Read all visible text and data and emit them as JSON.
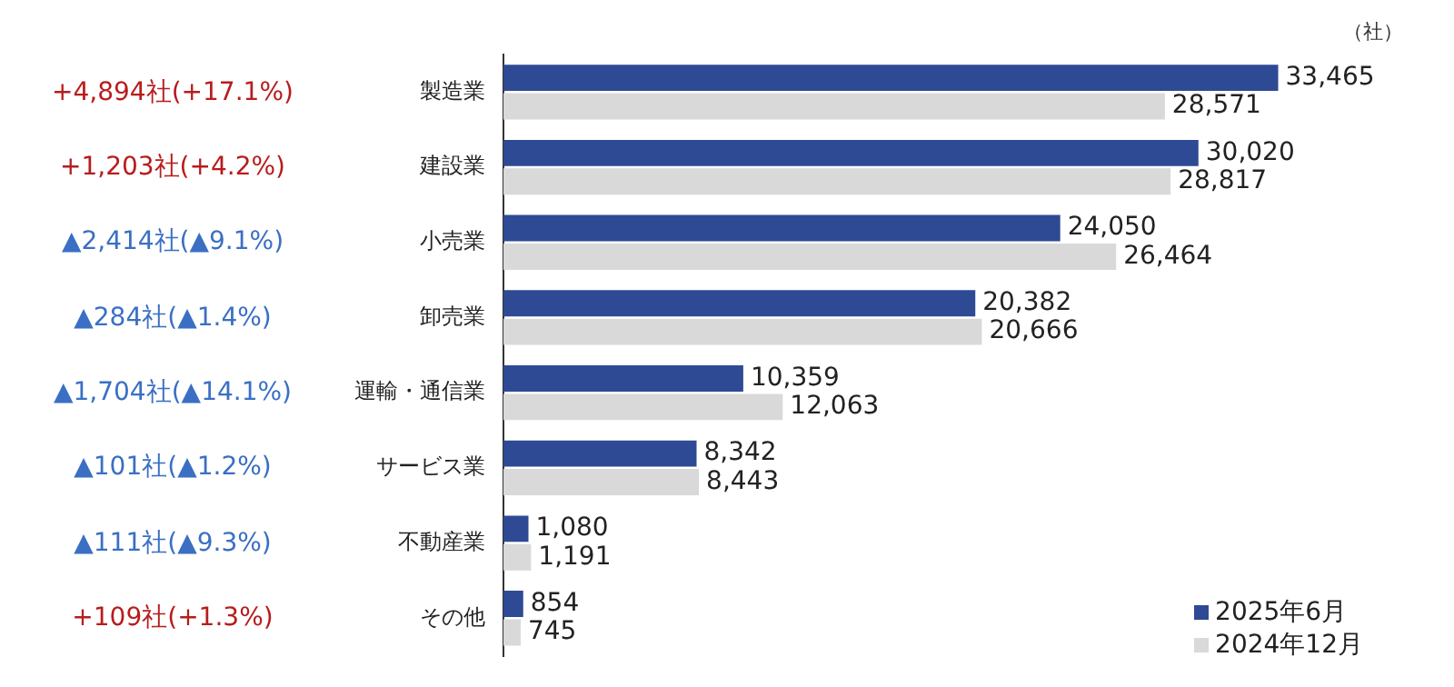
{
  "chart_data": {
    "type": "bar",
    "orientation": "horizontal",
    "categories": [
      "製造業",
      "建設業",
      "小売業",
      "卸売業",
      "運輸・通信業",
      "サービス業",
      "不動産業",
      "その他"
    ],
    "series": [
      {
        "name": "2025年6月",
        "color": "#2e4a94",
        "values": [
          33465,
          30020,
          24050,
          20382,
          10359,
          8342,
          1080,
          854
        ],
        "value_labels": [
          "33,465",
          "30,020",
          "24,050",
          "20,382",
          "10,359",
          "8,342",
          "1,080",
          "854"
        ]
      },
      {
        "name": "2024年12月",
        "color": "#d9d9d9",
        "values": [
          28571,
          28817,
          26464,
          20666,
          12063,
          8443,
          1191,
          745
        ],
        "value_labels": [
          "28,571",
          "28,817",
          "26,464",
          "20,666",
          "12,063",
          "8,443",
          "1,191",
          "745"
        ]
      }
    ],
    "legend": "bottom right",
    "annotations": [
      "（社）",
      "+4,894社(+17.1%)",
      "+1,203社(+4.2%)",
      "▲2,414社(▲9.1%)",
      "▲284社(▲1.4%)",
      "▲1,704社(▲14.1%)",
      "▲101社(▲1.2%)",
      "▲111社(▲9.3%)",
      "+109社(+1.3%)"
    ]
  }
}
